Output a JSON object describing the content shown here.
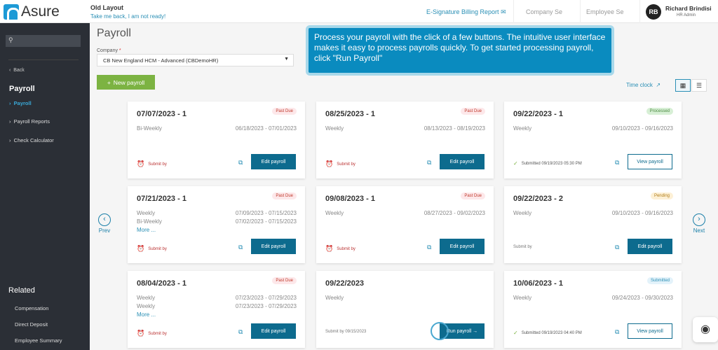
{
  "header": {
    "logo": "Asure",
    "old_layout": "Old Layout",
    "take_back": "Take me back, I am not ready!",
    "esig": "E-Signature Billing Report",
    "company_search": "Company Se",
    "employee_search": "Employee Se",
    "user_initials": "RB",
    "user_name": "Richard Brindisi",
    "user_role": "HR Admin"
  },
  "sidebar": {
    "search_icon": "search-icon",
    "back": "Back",
    "title": "Payroll",
    "items": [
      {
        "label": "Payroll",
        "active": true
      },
      {
        "label": "Payroll Reports"
      },
      {
        "label": "Check Calculator"
      }
    ],
    "related_title": "Related",
    "related": [
      "Compensation",
      "Direct Deposit",
      "Employee Summary"
    ]
  },
  "main": {
    "title": "Payroll",
    "company_label": "Company",
    "company_value": "CB New England HCM - Advanced (CBDemoHR)",
    "new_payroll": "New payroll",
    "time_clock": "Time clock",
    "prev": "Prev",
    "next": "Next",
    "cards": [
      {
        "title": "07/07/2023 - 1",
        "badge": "Past Due",
        "rows": [
          [
            "Bi-Weekly",
            "06/18/2023 - 07/01/2023"
          ]
        ],
        "submit": "Submit by",
        "alarm": true,
        "button": "Edit payroll"
      },
      {
        "title": "08/25/2023 - 1",
        "badge": "Past Due",
        "rows": [
          [
            "Weekly",
            "08/13/2023 - 08/19/2023"
          ]
        ],
        "submit": "Submit by",
        "alarm": true,
        "button": "Edit payroll"
      },
      {
        "title": "09/22/2023 - 1",
        "badge": "Processed",
        "rows": [
          [
            "Weekly",
            "09/10/2023 - 09/16/2023"
          ]
        ],
        "submit": "Submitted 09/19/2023 05:30 PM",
        "check": true,
        "button": "View payroll",
        "outline": true
      },
      {
        "title": "07/21/2023 - 1",
        "badge": "Past Due",
        "rows": [
          [
            "Weekly",
            "07/09/2023 - 07/15/2023"
          ],
          [
            "Bi-Weekly",
            "07/02/2023 - 07/15/2023"
          ]
        ],
        "more": "More ...",
        "submit": "Submit by",
        "alarm": true,
        "button": "Edit payroll"
      },
      {
        "title": "09/08/2023 - 1",
        "badge": "Past Due",
        "rows": [
          [
            "Weekly",
            "08/27/2023 - 09/02/2023"
          ]
        ],
        "submit": "Submit by",
        "alarm": true,
        "button": "Edit payroll"
      },
      {
        "title": "09/22/2023 - 2",
        "badge": "Pending",
        "rows": [
          [
            "Weekly",
            "09/10/2023 - 09/16/2023"
          ]
        ],
        "submit": "Submit by",
        "plain": true,
        "button": "Edit payroll"
      },
      {
        "title": "08/04/2023 - 1",
        "badge": "Past Due",
        "rows": [
          [
            "Weekly",
            "07/23/2023 - 07/29/2023"
          ],
          [
            "Weekly",
            "07/23/2023 - 07/29/2023"
          ]
        ],
        "more": "More ...",
        "submit": "Submit by",
        "alarm": true,
        "button": "Edit payroll"
      },
      {
        "title": "09/22/2023",
        "badge": "",
        "rows": [
          [
            "Weekly",
            ""
          ]
        ],
        "submit": "Submit by 09/15/2023",
        "plain": true,
        "button": "Run payroll →",
        "nocopy": true
      },
      {
        "title": "10/06/2023 - 1",
        "badge": "Submitted",
        "rows": [
          [
            "Weekly",
            "09/24/2023 - 09/30/2023"
          ]
        ],
        "submit": "Submitted 09/19/2023 04:40 PM",
        "check": true,
        "button": "View payroll",
        "outline": true
      }
    ]
  },
  "tooltip": "Process your payroll with the click of a few buttons. The intuitive user interface makes it easy to process payrolls quickly. To get started processing payroll, click \"Run Payroll\"",
  "badge_colors": {
    "Past Due": "#fde8ea",
    "Processed": "#d7efd5",
    "Pending": "#fdf0d5",
    "Submitted": "#e3f2fa"
  }
}
